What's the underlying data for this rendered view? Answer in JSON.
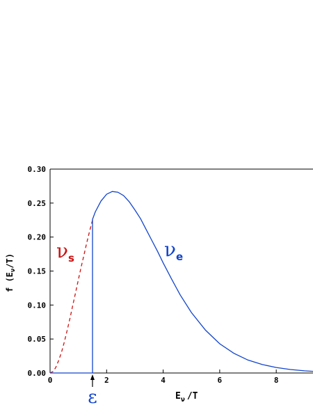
{
  "chart_data": {
    "type": "line",
    "title": "",
    "xlabel": "E",
    "xlabel_sub": "ν",
    "xlabel_suffix": "/T",
    "ylabel": "f (E",
    "ylabel_sub": "ν",
    "ylabel_suffix": "/T)",
    "xlim": [
      0,
      9.3
    ],
    "ylim": [
      0,
      0.3
    ],
    "x_ticks": [
      0,
      2,
      4,
      6,
      8
    ],
    "x_tick_labels": [
      "0",
      "2",
      "4",
      "6",
      "8"
    ],
    "y_ticks": [
      0.0,
      0.05,
      0.1,
      0.15,
      0.2,
      0.25,
      0.3
    ],
    "y_tick_labels": [
      "0.00",
      "0.05",
      "0.10",
      "0.15",
      "0.20",
      "0.25",
      "0.30"
    ],
    "grid": false,
    "series": [
      {
        "label": "ν",
        "label_sub": "s",
        "color": "#cc1111",
        "dash": "dashed",
        "x": [
          0.0,
          0.1,
          0.2,
          0.3,
          0.4,
          0.5,
          0.6,
          0.7,
          0.8,
          0.9,
          1.0,
          1.1,
          1.2,
          1.3,
          1.4,
          1.5
        ],
        "y": [
          0.0,
          0.002,
          0.008,
          0.018,
          0.03,
          0.045,
          0.062,
          0.08,
          0.099,
          0.118,
          0.137,
          0.156,
          0.174,
          0.192,
          0.209,
          0.225
        ]
      },
      {
        "label": "ν",
        "label_sub": "e",
        "color": "#1144cc",
        "dash": "solid",
        "x": [
          0.0,
          1.5,
          1.5,
          1.6,
          1.8,
          2.0,
          2.2,
          2.4,
          2.6,
          2.8,
          3.0,
          3.2,
          3.4,
          3.6,
          3.8,
          4.0,
          4.3,
          4.6,
          5.0,
          5.5,
          6.0,
          6.5,
          7.0,
          7.5,
          8.0,
          8.5,
          9.0,
          9.3
        ],
        "y": [
          0.0,
          0.0,
          0.226,
          0.237,
          0.253,
          0.263,
          0.267,
          0.266,
          0.261,
          0.252,
          0.24,
          0.227,
          0.211,
          0.195,
          0.179,
          0.162,
          0.138,
          0.115,
          0.089,
          0.063,
          0.043,
          0.029,
          0.019,
          0.0125,
          0.0081,
          0.0051,
          0.0032,
          0.0025
        ]
      }
    ],
    "annotation": {
      "text": "ε",
      "x": 1.5
    }
  }
}
